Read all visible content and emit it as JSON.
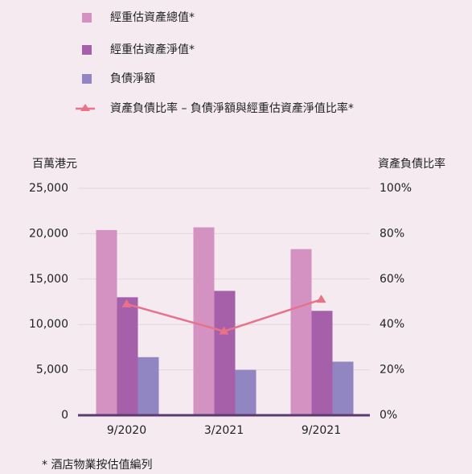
{
  "chart_data": {
    "type": "bar",
    "categories": [
      "9/2020",
      "3/2021",
      "9/2021"
    ],
    "series": [
      {
        "name": "經重估資產總值*",
        "color": "#d492c2",
        "values": [
          20400,
          20700,
          18300
        ]
      },
      {
        "name": "經重估資產淨值*",
        "color": "#a660a9",
        "values": [
          13000,
          13700,
          11500
        ]
      },
      {
        "name": "負債淨額",
        "color": "#9186c2",
        "values": [
          6400,
          5000,
          5900
        ]
      },
      {
        "name": "資產負債比率 – 負債淨額與經重估資產淨值比率*",
        "color": "#e8718b",
        "type": "line",
        "axis": "y2",
        "values": [
          49,
          37,
          51
        ]
      }
    ],
    "y_label": "百萬港元",
    "y2_label": "資產負債比率",
    "ylim": [
      0,
      25000
    ],
    "yticks": [
      0,
      {
        "value": 5000,
        "label": "5,000"
      },
      {
        "value": 10000,
        "label": "10,000"
      },
      {
        "value": 15000,
        "label": "15,000"
      },
      {
        "value": 20000,
        "label": "20,000"
      },
      {
        "value": 25000,
        "label": "25,000"
      }
    ],
    "y2lim": [
      0,
      100
    ],
    "y2ticks": [
      {
        "value": 0,
        "label": "0%"
      },
      {
        "value": 20,
        "label": "20%"
      },
      {
        "value": 40,
        "label": "40%"
      },
      {
        "value": 60,
        "label": "60%"
      },
      {
        "value": 80,
        "label": "80%"
      },
      {
        "value": 100,
        "label": "100%"
      }
    ],
    "grid": true,
    "footnote": "* 酒店物業按估值編列"
  }
}
